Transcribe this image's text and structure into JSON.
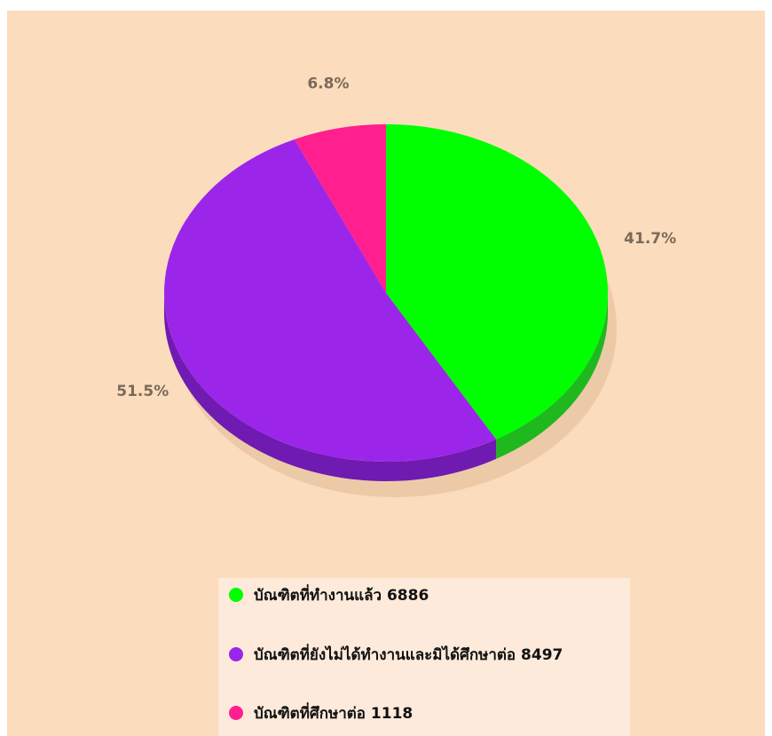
{
  "chart_data": {
    "type": "pie",
    "title": "",
    "slices": [
      {
        "name": "บัณฑิตที่ทำงานแล้ว",
        "value": 6886,
        "percent_label": "41.7%",
        "color": "#00ff00",
        "side_color": "#1fb81f"
      },
      {
        "name": "บัณฑิตที่ยังไม่ได้ทำงานและมิได้ศึกษาต่อ",
        "value": 8497,
        "percent_label": "51.5%",
        "color": "#9b26ea",
        "side_color": "#6f1ab0"
      },
      {
        "name": "บัณฑิตที่ศึกษาต่อ",
        "value": 1118,
        "percent_label": "6.8%",
        "color": "#ff1f8e",
        "side_color": "#c4136c"
      }
    ],
    "legend_position": "bottom"
  },
  "legend": {
    "items": [
      {
        "label": "บัณฑิตที่ทำงานแล้ว 6886",
        "color": "#00ff00"
      },
      {
        "label": "บัณฑิตที่ยังไม่ได้ทำงานและมิได้ศึกษาต่อ 8497",
        "color": "#9b26ea"
      },
      {
        "label": "บัณฑิตที่ศึกษาต่อ 1118",
        "color": "#ff1f8e"
      }
    ]
  },
  "colors": {
    "background": "#fbdcbd",
    "legend_background": "#fdeadb",
    "label_text": "#7a6a5a"
  }
}
